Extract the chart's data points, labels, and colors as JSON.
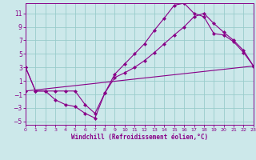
{
  "xlabel": "Windchill (Refroidissement éolien,°C)",
  "bg_color": "#cce8ea",
  "line_color": "#880088",
  "grid_color": "#99cccc",
  "xlim": [
    0,
    23
  ],
  "ylim": [
    -5.5,
    12.5
  ],
  "yticks": [
    -5,
    -3,
    -1,
    1,
    3,
    5,
    7,
    9,
    11
  ],
  "xticks": [
    0,
    1,
    2,
    3,
    4,
    5,
    6,
    7,
    8,
    9,
    10,
    11,
    12,
    13,
    14,
    15,
    16,
    17,
    18,
    19,
    20,
    21,
    22,
    23
  ],
  "line1_x": [
    0,
    1,
    2,
    3,
    4,
    5,
    6,
    7,
    8,
    9,
    10,
    11,
    12,
    13,
    14,
    15,
    16,
    17,
    18,
    19,
    20,
    21,
    22,
    23
  ],
  "line1_y": [
    3,
    -0.5,
    -0.5,
    -1.8,
    -2.5,
    -2.8,
    -3.8,
    -4.5,
    -0.8,
    2.0,
    3.5,
    5.0,
    6.5,
    8.5,
    10.3,
    12.2,
    12.5,
    11.0,
    10.5,
    8.0,
    7.8,
    6.8,
    5.2,
    3.2
  ],
  "line2_x": [
    0,
    1,
    2,
    3,
    4,
    5,
    6,
    7,
    8,
    9,
    10,
    11,
    12,
    13,
    14,
    15,
    16,
    17,
    18,
    19,
    20,
    21,
    22,
    23
  ],
  "line2_y": [
    3,
    -0.5,
    -0.5,
    -0.5,
    -0.5,
    -0.5,
    -2.5,
    -3.8,
    -0.8,
    1.5,
    2.2,
    3.0,
    4.0,
    5.2,
    6.5,
    7.8,
    9.0,
    10.5,
    11.0,
    9.5,
    8.2,
    7.0,
    5.5,
    3.2
  ],
  "line3_x": [
    0,
    23
  ],
  "line3_y": [
    -0.5,
    3.2
  ]
}
